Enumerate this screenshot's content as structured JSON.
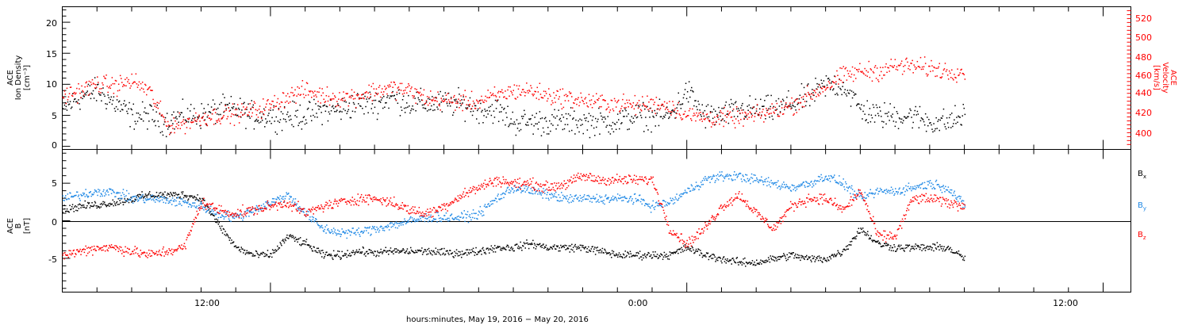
{
  "chart_data": [
    {
      "type": "scatter",
      "panel": "top",
      "ylabel_left": [
        "ACE",
        "Ion Density",
        "[cm⁻³]"
      ],
      "ylabel_right": [
        "ACE",
        "Velocity",
        "[km/s]"
      ],
      "y_left_ticks": [
        "0",
        "5",
        "10",
        "15",
        "20"
      ],
      "y_right_ticks": [
        "400",
        "420",
        "440",
        "460",
        "480",
        "500",
        "520"
      ],
      "ylim_left": [
        -0.5,
        22.5
      ],
      "ylim_right": [
        385,
        530
      ],
      "series": [
        {
          "color": "#000000",
          "axis": "left",
          "keyframes": [
            [
              6.0,
              6
            ],
            [
              6.5,
              8
            ],
            [
              7.0,
              9
            ],
            [
              7.5,
              7
            ],
            [
              8.0,
              5
            ],
            [
              8.5,
              5
            ],
            [
              9.0,
              4
            ],
            [
              9.5,
              5
            ],
            [
              10.0,
              5
            ],
            [
              10.5,
              6
            ],
            [
              11.0,
              6
            ],
            [
              11.5,
              5
            ],
            [
              12.0,
              5
            ],
            [
              12.5,
              5
            ],
            [
              13.0,
              5
            ],
            [
              13.5,
              6
            ],
            [
              14.0,
              6
            ],
            [
              14.5,
              7
            ],
            [
              15.0,
              7
            ],
            [
              15.5,
              8
            ],
            [
              16.0,
              7
            ],
            [
              16.5,
              7
            ],
            [
              17.0,
              7
            ],
            [
              17.5,
              7
            ],
            [
              18.0,
              6
            ],
            [
              18.5,
              6
            ],
            [
              19.0,
              4
            ],
            [
              19.5,
              4
            ],
            [
              20.0,
              4
            ],
            [
              20.5,
              4
            ],
            [
              21.0,
              4
            ],
            [
              21.5,
              4
            ],
            [
              22.0,
              4
            ],
            [
              22.5,
              5
            ],
            [
              23.0,
              5
            ],
            [
              23.5,
              5
            ],
            [
              24.0,
              9
            ],
            [
              24.5,
              5
            ],
            [
              25.0,
              5
            ],
            [
              25.5,
              6
            ],
            [
              26.0,
              6
            ],
            [
              26.5,
              6
            ],
            [
              27.0,
              7
            ],
            [
              27.5,
              8
            ],
            [
              28.0,
              10
            ],
            [
              28.5,
              10
            ],
            [
              29.0,
              6
            ],
            [
              29.5,
              5
            ],
            [
              30.0,
              5
            ],
            [
              30.5,
              5
            ],
            [
              31.0,
              4
            ],
            [
              31.5,
              4
            ],
            [
              32.0,
              5
            ]
          ]
        },
        {
          "color": "#ff0000",
          "axis": "right",
          "keyframes": [
            [
              6.0,
              440
            ],
            [
              6.5,
              445
            ],
            [
              7.0,
              452
            ],
            [
              7.5,
              450
            ],
            [
              8.0,
              455
            ],
            [
              8.5,
              445
            ],
            [
              9.0,
              410
            ],
            [
              9.5,
              412
            ],
            [
              10.0,
              418
            ],
            [
              10.5,
              420
            ],
            [
              11.0,
              422
            ],
            [
              11.5,
              425
            ],
            [
              12.0,
              430
            ],
            [
              12.5,
              440
            ],
            [
              13.0,
              445
            ],
            [
              13.5,
              440
            ],
            [
              14.0,
              438
            ],
            [
              14.5,
              440
            ],
            [
              15.0,
              445
            ],
            [
              15.5,
              448
            ],
            [
              16.0,
              445
            ],
            [
              16.5,
              437
            ],
            [
              17.0,
              435
            ],
            [
              17.5,
              434
            ],
            [
              18.0,
              434
            ],
            [
              18.5,
              440
            ],
            [
              19.0,
              445
            ],
            [
              19.5,
              445
            ],
            [
              20.0,
              440
            ],
            [
              20.5,
              438
            ],
            [
              21.0,
              435
            ],
            [
              21.5,
              433
            ],
            [
              22.0,
              432
            ],
            [
              22.5,
              430
            ],
            [
              23.0,
              432
            ],
            [
              23.5,
              430
            ],
            [
              24.0,
              420
            ],
            [
              24.5,
              418
            ],
            [
              25.0,
              417
            ],
            [
              25.5,
              418
            ],
            [
              26.0,
              420
            ],
            [
              26.5,
              425
            ],
            [
              27.0,
              430
            ],
            [
              27.5,
              440
            ],
            [
              28.0,
              450
            ],
            [
              28.5,
              460
            ],
            [
              29.0,
              465
            ],
            [
              29.5,
              465
            ],
            [
              30.0,
              470
            ],
            [
              30.5,
              470
            ],
            [
              31.0,
              468
            ],
            [
              31.5,
              465
            ],
            [
              32.0,
              465
            ]
          ]
        }
      ]
    },
    {
      "type": "scatter",
      "panel": "bottom",
      "ylabel_left": [
        "ACE",
        "B",
        "[nT]"
      ],
      "y_left_ticks": [
        "-5",
        "0",
        "5"
      ],
      "ylim_left": [
        -9.5,
        9.5
      ],
      "series": [
        {
          "name": "Bx",
          "color": "#000000",
          "keyframes": [
            [
              6.0,
              1.5
            ],
            [
              6.5,
              2.0
            ],
            [
              7.0,
              2.2
            ],
            [
              7.5,
              2.5
            ],
            [
              8.0,
              3.0
            ],
            [
              8.5,
              3.5
            ],
            [
              9.0,
              3.5
            ],
            [
              9.5,
              3.5
            ],
            [
              10.0,
              3.0
            ],
            [
              10.5,
              -0.5
            ],
            [
              11.0,
              -3.5
            ],
            [
              11.5,
              -4.5
            ],
            [
              12.0,
              -4.5
            ],
            [
              12.5,
              -2.0
            ],
            [
              13.0,
              -3.0
            ],
            [
              13.5,
              -4.5
            ],
            [
              14.0,
              -4.5
            ],
            [
              14.5,
              -4.0
            ],
            [
              15.0,
              -4.2
            ],
            [
              15.5,
              -4.0
            ],
            [
              16.0,
              -4.0
            ],
            [
              16.5,
              -4.0
            ],
            [
              17.0,
              -4.2
            ],
            [
              17.5,
              -4.2
            ],
            [
              18.0,
              -4.0
            ],
            [
              18.5,
              -3.5
            ],
            [
              19.0,
              -3.5
            ],
            [
              19.5,
              -3.0
            ],
            [
              20.0,
              -3.5
            ],
            [
              20.5,
              -3.5
            ],
            [
              21.0,
              -3.5
            ],
            [
              21.5,
              -4.0
            ],
            [
              22.0,
              -4.5
            ],
            [
              22.5,
              -4.5
            ],
            [
              23.0,
              -4.5
            ],
            [
              23.5,
              -4.5
            ],
            [
              24.0,
              -3.5
            ],
            [
              24.5,
              -4.5
            ],
            [
              25.0,
              -5.0
            ],
            [
              25.5,
              -5.5
            ],
            [
              26.0,
              -5.5
            ],
            [
              26.5,
              -5.0
            ],
            [
              27.0,
              -4.5
            ],
            [
              27.5,
              -5.0
            ],
            [
              28.0,
              -5.0
            ],
            [
              28.5,
              -4.0
            ],
            [
              29.0,
              -1.0
            ],
            [
              29.5,
              -3.0
            ],
            [
              30.0,
              -3.5
            ],
            [
              30.5,
              -3.5
            ],
            [
              31.0,
              -3.5
            ],
            [
              31.5,
              -3.5
            ],
            [
              32.0,
              -5.0
            ]
          ]
        },
        {
          "name": "By",
          "color": "#1e88e5",
          "keyframes": [
            [
              6.0,
              3.0
            ],
            [
              6.5,
              3.5
            ],
            [
              7.0,
              4.0
            ],
            [
              7.5,
              3.8
            ],
            [
              8.0,
              3.0
            ],
            [
              8.5,
              3.0
            ],
            [
              9.0,
              2.8
            ],
            [
              9.5,
              2.5
            ],
            [
              10.0,
              2.0
            ],
            [
              10.5,
              1.0
            ],
            [
              11.0,
              0.5
            ],
            [
              11.5,
              1.5
            ],
            [
              12.0,
              2.5
            ],
            [
              12.5,
              3.5
            ],
            [
              13.0,
              1.0
            ],
            [
              13.5,
              -1.0
            ],
            [
              14.0,
              -1.5
            ],
            [
              14.5,
              -1.5
            ],
            [
              15.0,
              -1.0
            ],
            [
              15.5,
              -0.5
            ],
            [
              16.0,
              0.0
            ],
            [
              16.5,
              0.5
            ],
            [
              17.0,
              0.5
            ],
            [
              17.5,
              0.5
            ],
            [
              18.0,
              1.0
            ],
            [
              18.5,
              3.0
            ],
            [
              19.0,
              4.5
            ],
            [
              19.5,
              4.0
            ],
            [
              20.0,
              3.5
            ],
            [
              20.5,
              3.0
            ],
            [
              21.0,
              3.0
            ],
            [
              21.5,
              3.0
            ],
            [
              22.0,
              3.0
            ],
            [
              22.5,
              3.0
            ],
            [
              23.0,
              2.0
            ],
            [
              23.5,
              2.5
            ],
            [
              24.0,
              4.0
            ],
            [
              24.5,
              5.5
            ],
            [
              25.0,
              6.0
            ],
            [
              25.5,
              6.0
            ],
            [
              26.0,
              5.5
            ],
            [
              26.5,
              5.0
            ],
            [
              27.0,
              4.5
            ],
            [
              27.5,
              5.0
            ],
            [
              28.0,
              6.0
            ],
            [
              28.5,
              5.0
            ],
            [
              29.0,
              3.0
            ],
            [
              29.5,
              4.0
            ],
            [
              30.0,
              4.0
            ],
            [
              30.5,
              4.5
            ],
            [
              31.0,
              5.0
            ],
            [
              31.5,
              4.5
            ],
            [
              32.0,
              2.0
            ]
          ]
        },
        {
          "name": "Bz",
          "color": "#ff0000",
          "keyframes": [
            [
              6.0,
              -4.5
            ],
            [
              6.5,
              -4.0
            ],
            [
              7.0,
              -3.5
            ],
            [
              7.5,
              -3.5
            ],
            [
              8.0,
              -4.0
            ],
            [
              8.5,
              -4.5
            ],
            [
              9.0,
              -4.0
            ],
            [
              9.5,
              -3.5
            ],
            [
              10.0,
              2.5
            ],
            [
              10.5,
              1.5
            ],
            [
              11.0,
              1.0
            ],
            [
              11.5,
              1.5
            ],
            [
              12.0,
              2.0
            ],
            [
              12.5,
              2.5
            ],
            [
              13.0,
              1.0
            ],
            [
              13.5,
              2.0
            ],
            [
              14.0,
              2.5
            ],
            [
              14.5,
              3.0
            ],
            [
              15.0,
              3.0
            ],
            [
              15.5,
              2.5
            ],
            [
              16.0,
              1.5
            ],
            [
              16.5,
              1.0
            ],
            [
              17.0,
              2.0
            ],
            [
              17.5,
              3.5
            ],
            [
              18.0,
              4.5
            ],
            [
              18.5,
              5.5
            ],
            [
              19.0,
              5.0
            ],
            [
              19.5,
              5.0
            ],
            [
              20.0,
              4.5
            ],
            [
              20.5,
              5.0
            ],
            [
              21.0,
              6.0
            ],
            [
              21.5,
              5.5
            ],
            [
              22.0,
              5.5
            ],
            [
              22.5,
              5.5
            ],
            [
              23.0,
              5.5
            ],
            [
              23.5,
              -1.0
            ],
            [
              24.0,
              -3.0
            ],
            [
              24.5,
              -1.0
            ],
            [
              25.0,
              2.0
            ],
            [
              25.5,
              3.5
            ],
            [
              26.0,
              1.0
            ],
            [
              26.5,
              -1.0
            ],
            [
              27.0,
              2.0
            ],
            [
              27.5,
              3.0
            ],
            [
              28.0,
              3.0
            ],
            [
              28.5,
              1.5
            ],
            [
              29.0,
              4.0
            ],
            [
              29.5,
              -2.0
            ],
            [
              30.0,
              -2.0
            ],
            [
              30.5,
              3.0
            ],
            [
              31.0,
              3.0
            ],
            [
              31.5,
              2.5
            ],
            [
              32.0,
              2.0
            ]
          ]
        }
      ]
    }
  ],
  "legend_labels": [
    "B",
    "B",
    "B"
  ],
  "legend_subs": [
    "x",
    "y",
    "z"
  ],
  "x_tick_labels": [
    "12:00",
    "0:00",
    "12:00"
  ],
  "x_title": "hours:minutes, May 19, 2016 − May 20, 2016"
}
